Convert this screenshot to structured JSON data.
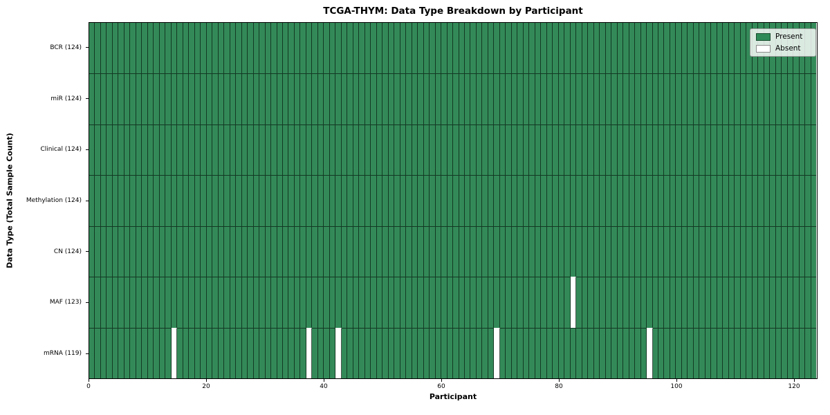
{
  "chart_data": {
    "type": "heatmap",
    "title": "TCGA-THYM: Data Type Breakdown by Participant",
    "xlabel": "Participant",
    "ylabel": "Data Type (Total Sample Count)",
    "n_participants": 124,
    "xlim": [
      0,
      124
    ],
    "x_ticks": [
      0,
      20,
      40,
      60,
      80,
      100,
      120
    ],
    "rows": [
      {
        "data_type": "BCR",
        "label": "BCR (124)",
        "present_count": 124,
        "absent_indices": []
      },
      {
        "data_type": "miR",
        "label": "miR (124)",
        "present_count": 124,
        "absent_indices": []
      },
      {
        "data_type": "Clinical",
        "label": "Clinical (124)",
        "present_count": 124,
        "absent_indices": []
      },
      {
        "data_type": "Methylation",
        "label": "Methylation (124)",
        "present_count": 124,
        "absent_indices": []
      },
      {
        "data_type": "CN",
        "label": "CN (124)",
        "present_count": 124,
        "absent_indices": []
      },
      {
        "data_type": "MAF",
        "label": "MAF (123)",
        "present_count": 123,
        "absent_indices": [
          82
        ]
      },
      {
        "data_type": "mRNA",
        "label": "mRNA (119)",
        "present_count": 119,
        "absent_indices": [
          14,
          37,
          42,
          69,
          95
        ]
      }
    ],
    "legend": [
      {
        "label": "Present",
        "color": "#2e8b57"
      },
      {
        "label": "Absent",
        "color": "#ffffff"
      }
    ],
    "colors": {
      "present": "#338a58",
      "absent": "#ffffff",
      "edge": "rgba(10,28,18,0.75)",
      "spine": "#000000"
    },
    "legend_position": "upper-right",
    "grid": false
  }
}
